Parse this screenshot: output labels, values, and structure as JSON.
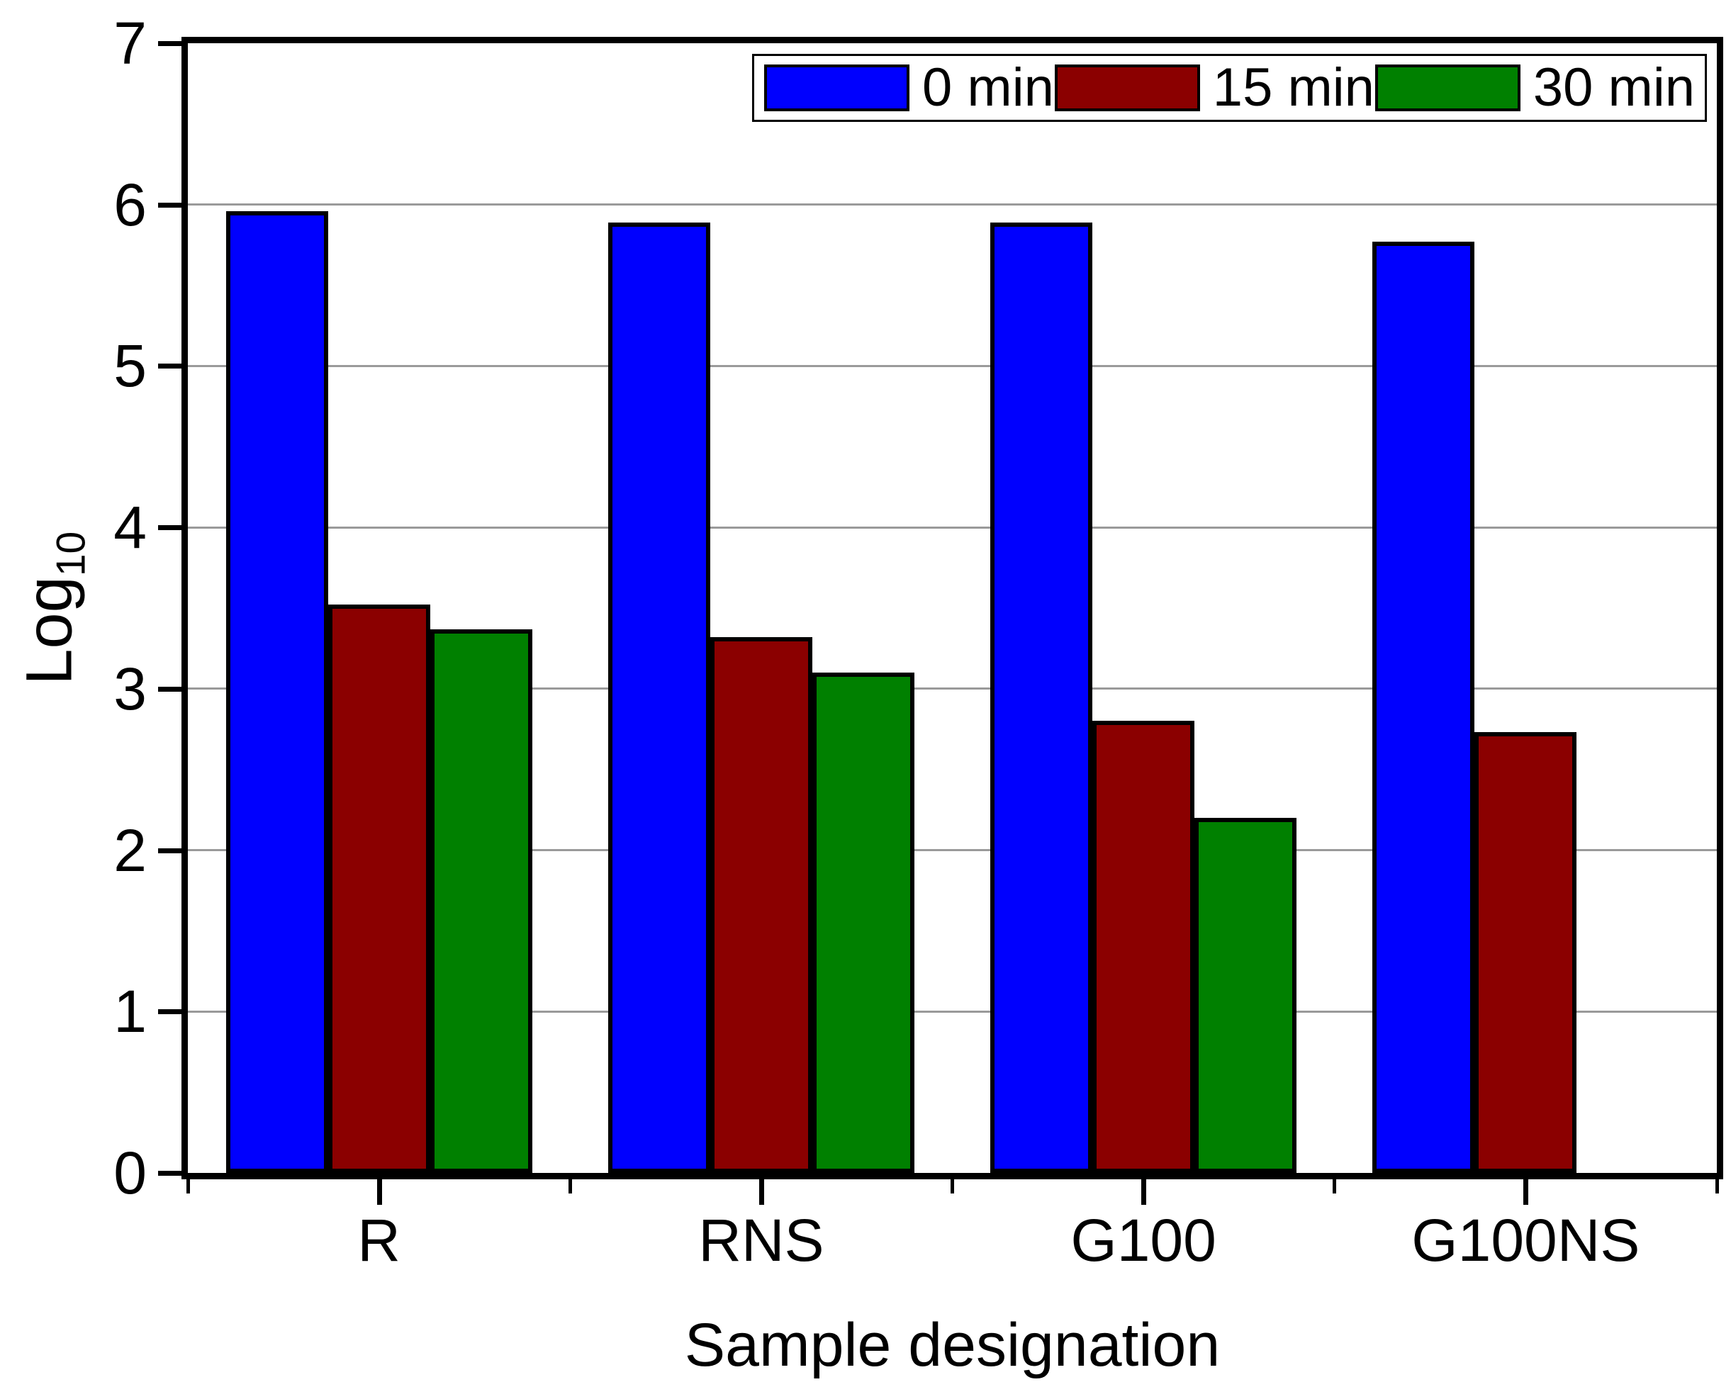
{
  "figure": {
    "background": "#ffffff",
    "axis_color": "#000000",
    "gridline_color": "#9a9a9a"
  },
  "chart_data": {
    "type": "bar",
    "title": "",
    "xlabel": "Sample designation",
    "ylabel": {
      "base": "Log",
      "subscript": "10"
    },
    "categories": [
      "R",
      "RNS",
      "G100",
      "G100NS"
    ],
    "series": [
      {
        "name": "0 min",
        "color": "#0000fe",
        "values": [
          5.96,
          5.89,
          5.89,
          5.77
        ]
      },
      {
        "name": "15 min",
        "color": "#8b0000",
        "values": [
          3.52,
          3.32,
          2.8,
          2.73
        ]
      },
      {
        "name": "30 min",
        "color": "#008000",
        "values": [
          3.37,
          3.1,
          2.2,
          null
        ]
      }
    ],
    "ylim": [
      0,
      7
    ],
    "yticks": [
      0,
      1,
      2,
      3,
      4,
      5,
      6,
      7
    ],
    "grid": true,
    "legend_position": "top"
  }
}
